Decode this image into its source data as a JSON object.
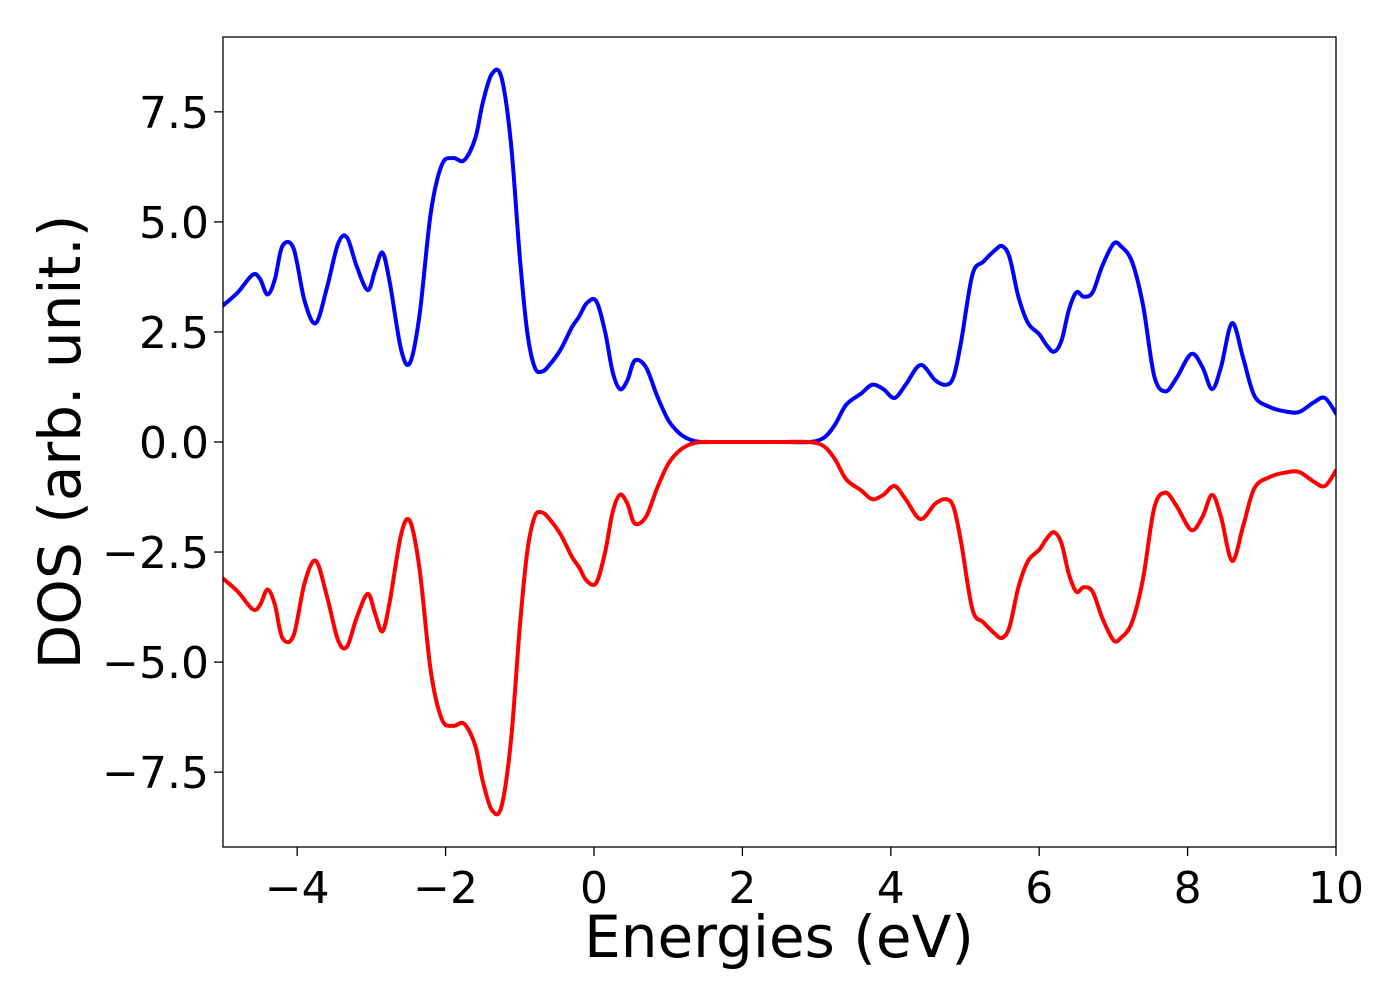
{
  "chart_data": {
    "type": "line",
    "title": "",
    "xlabel": "Energies (eV)",
    "ylabel": "DOS (arb. unit.)",
    "xlim": [
      -5,
      10
    ],
    "ylim": [
      -9.2,
      9.2
    ],
    "grid": false,
    "legend": "none",
    "xticks": [
      {
        "value": -4,
        "label": "−4"
      },
      {
        "value": -2,
        "label": "−2"
      },
      {
        "value": 0,
        "label": "0"
      },
      {
        "value": 2,
        "label": "2"
      },
      {
        "value": 4,
        "label": "4"
      },
      {
        "value": 6,
        "label": "6"
      },
      {
        "value": 8,
        "label": "8"
      },
      {
        "value": 10,
        "label": "10"
      }
    ],
    "yticks": [
      {
        "value": -7.5,
        "label": "−7.5"
      },
      {
        "value": -5.0,
        "label": "−5.0"
      },
      {
        "value": -2.5,
        "label": "−2.5"
      },
      {
        "value": 0.0,
        "label": "0.0"
      },
      {
        "value": 2.5,
        "label": "2.5"
      },
      {
        "value": 5.0,
        "label": "5.0"
      },
      {
        "value": 7.5,
        "label": "7.5"
      }
    ],
    "series": [
      {
        "color": "#0000ff",
        "x": [
          -5.0,
          -4.8,
          -4.6,
          -4.5,
          -4.4,
          -4.3,
          -4.2,
          -4.05,
          -3.9,
          -3.75,
          -3.6,
          -3.45,
          -3.33,
          -3.2,
          -3.05,
          -2.95,
          -2.85,
          -2.75,
          -2.6,
          -2.48,
          -2.35,
          -2.2,
          -2.05,
          -1.9,
          -1.75,
          -1.6,
          -1.5,
          -1.38,
          -1.25,
          -1.12,
          -1.0,
          -0.9,
          -0.8,
          -0.7,
          -0.6,
          -0.45,
          -0.3,
          -0.2,
          -0.1,
          0.03,
          0.15,
          0.25,
          0.35,
          0.45,
          0.55,
          0.7,
          0.85,
          1.0,
          1.15,
          1.3,
          1.45,
          1.6,
          2.0,
          2.5,
          2.9,
          3.1,
          3.25,
          3.4,
          3.6,
          3.75,
          3.9,
          4.05,
          4.2,
          4.4,
          4.6,
          4.75,
          4.85,
          4.95,
          5.1,
          5.25,
          5.4,
          5.5,
          5.6,
          5.72,
          5.85,
          6.0,
          6.1,
          6.2,
          6.3,
          6.4,
          6.5,
          6.6,
          6.72,
          6.85,
          7.0,
          7.1,
          7.25,
          7.4,
          7.55,
          7.7,
          7.85,
          8.05,
          8.2,
          8.33,
          8.45,
          8.6,
          8.75,
          8.9,
          9.1,
          9.3,
          9.5,
          9.7,
          9.85,
          10.0
        ],
        "y": [
          3.1,
          3.4,
          3.8,
          3.7,
          3.35,
          3.7,
          4.45,
          4.4,
          3.2,
          2.7,
          3.5,
          4.5,
          4.65,
          4.0,
          3.45,
          3.9,
          4.3,
          3.6,
          2.1,
          1.8,
          2.9,
          5.2,
          6.3,
          6.45,
          6.4,
          6.9,
          7.7,
          8.35,
          8.3,
          6.8,
          4.2,
          2.5,
          1.7,
          1.6,
          1.75,
          2.1,
          2.6,
          2.85,
          3.15,
          3.2,
          2.5,
          1.6,
          1.2,
          1.4,
          1.85,
          1.7,
          1.05,
          0.5,
          0.2,
          0.05,
          0.0,
          0.0,
          0.0,
          0.0,
          0.0,
          0.1,
          0.4,
          0.85,
          1.1,
          1.3,
          1.2,
          1.0,
          1.3,
          1.75,
          1.4,
          1.3,
          1.5,
          2.3,
          3.8,
          4.1,
          4.35,
          4.45,
          4.2,
          3.3,
          2.7,
          2.45,
          2.2,
          2.05,
          2.3,
          3.0,
          3.4,
          3.3,
          3.4,
          4.0,
          4.5,
          4.45,
          4.1,
          3.1,
          1.5,
          1.15,
          1.45,
          2.0,
          1.7,
          1.2,
          1.7,
          2.7,
          1.9,
          1.05,
          0.8,
          0.7,
          0.68,
          0.9,
          1.0,
          0.65
        ]
      },
      {
        "color": "#ff0000",
        "x": [
          -5.0,
          -4.8,
          -4.6,
          -4.5,
          -4.4,
          -4.3,
          -4.2,
          -4.05,
          -3.9,
          -3.75,
          -3.6,
          -3.45,
          -3.33,
          -3.2,
          -3.05,
          -2.95,
          -2.85,
          -2.75,
          -2.6,
          -2.48,
          -2.35,
          -2.2,
          -2.05,
          -1.9,
          -1.75,
          -1.6,
          -1.5,
          -1.38,
          -1.25,
          -1.12,
          -1.0,
          -0.9,
          -0.8,
          -0.7,
          -0.6,
          -0.45,
          -0.3,
          -0.2,
          -0.1,
          0.03,
          0.15,
          0.25,
          0.35,
          0.45,
          0.55,
          0.7,
          0.85,
          1.0,
          1.15,
          1.3,
          1.45,
          1.6,
          2.0,
          2.5,
          2.9,
          3.1,
          3.25,
          3.4,
          3.6,
          3.75,
          3.9,
          4.05,
          4.2,
          4.4,
          4.6,
          4.75,
          4.85,
          4.95,
          5.1,
          5.25,
          5.4,
          5.5,
          5.6,
          5.72,
          5.85,
          6.0,
          6.1,
          6.2,
          6.3,
          6.4,
          6.5,
          6.6,
          6.72,
          6.85,
          7.0,
          7.1,
          7.25,
          7.4,
          7.55,
          7.7,
          7.85,
          8.05,
          8.2,
          8.33,
          8.45,
          8.6,
          8.75,
          8.9,
          9.1,
          9.3,
          9.5,
          9.7,
          9.85,
          10.0
        ],
        "y": [
          -3.1,
          -3.4,
          -3.8,
          -3.7,
          -3.35,
          -3.7,
          -4.45,
          -4.4,
          -3.2,
          -2.7,
          -3.5,
          -4.5,
          -4.65,
          -4.0,
          -3.45,
          -3.9,
          -4.3,
          -3.6,
          -2.1,
          -1.8,
          -2.9,
          -5.2,
          -6.3,
          -6.45,
          -6.4,
          -6.9,
          -7.7,
          -8.35,
          -8.3,
          -6.8,
          -4.2,
          -2.5,
          -1.7,
          -1.6,
          -1.75,
          -2.1,
          -2.6,
          -2.85,
          -3.15,
          -3.2,
          -2.5,
          -1.6,
          -1.2,
          -1.4,
          -1.85,
          -1.7,
          -1.05,
          -0.5,
          -0.2,
          -0.05,
          0.0,
          0.0,
          0.0,
          0.0,
          0.0,
          -0.1,
          -0.4,
          -0.85,
          -1.1,
          -1.3,
          -1.2,
          -1.0,
          -1.3,
          -1.75,
          -1.4,
          -1.3,
          -1.5,
          -2.3,
          -3.8,
          -4.1,
          -4.35,
          -4.45,
          -4.2,
          -3.3,
          -2.7,
          -2.45,
          -2.2,
          -2.05,
          -2.3,
          -3.0,
          -3.4,
          -3.3,
          -3.4,
          -4.0,
          -4.5,
          -4.45,
          -4.1,
          -3.1,
          -1.5,
          -1.15,
          -1.45,
          -2.0,
          -1.7,
          -1.2,
          -1.7,
          -2.7,
          -1.9,
          -1.05,
          -0.8,
          -0.7,
          -0.68,
          -0.9,
          -1.0,
          -0.65
        ]
      }
    ]
  }
}
